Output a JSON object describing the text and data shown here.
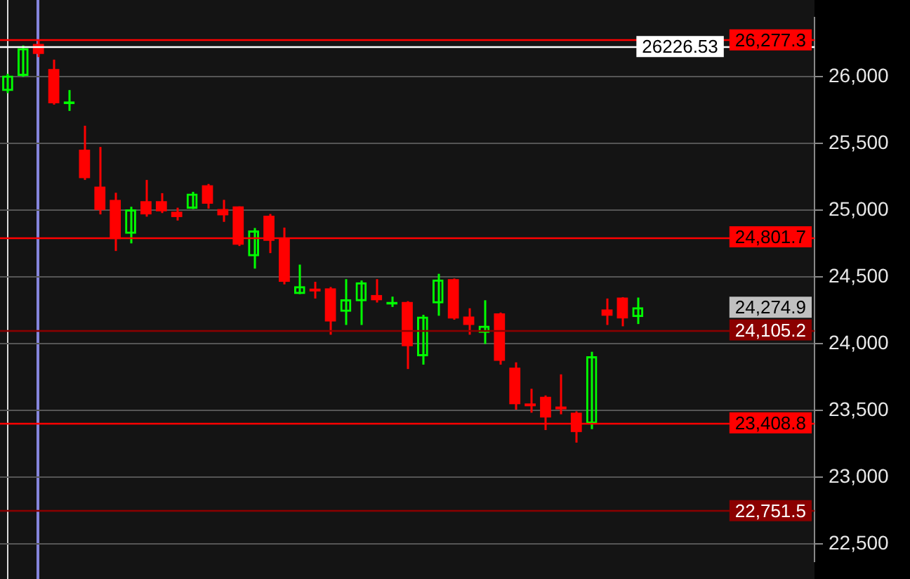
{
  "chart_data": {
    "type": "candlestick",
    "categories": [
      null,
      null,
      null,
      null,
      null,
      null,
      null,
      null,
      null,
      null,
      null,
      null,
      null,
      null,
      null,
      null,
      null,
      null,
      null,
      null,
      null,
      null,
      null,
      null,
      null,
      null,
      null,
      null,
      null,
      null,
      null,
      null,
      null,
      null,
      null,
      null,
      null,
      null,
      null,
      null,
      null,
      null,
      null,
      null,
      null,
      null,
      null,
      null,
      null,
      null,
      null,
      null,
      null
    ],
    "ohlc": [
      [
        25894,
        26023,
        25878,
        26010
      ],
      [
        26007,
        26235,
        26000,
        26215
      ],
      [
        26247,
        26277.3,
        26148,
        26171
      ],
      [
        26059,
        26129,
        25792,
        25802
      ],
      [
        25795,
        25901,
        25745,
        25805
      ],
      [
        25455,
        25634,
        25228,
        25241
      ],
      [
        25178,
        25475,
        24970,
        25003
      ],
      [
        25079,
        25132,
        24696,
        24785
      ],
      [
        24825,
        25027,
        24753,
        25007
      ],
      [
        25069,
        25228,
        24953,
        24970
      ],
      [
        25069,
        25129,
        24980,
        24993
      ],
      [
        24990,
        25020,
        24924,
        24950
      ],
      [
        25013,
        25139,
        25010,
        25126
      ],
      [
        25188,
        25198,
        25013,
        25050
      ],
      [
        25010,
        25079,
        24914,
        24963
      ],
      [
        25030,
        25030,
        24733,
        24743
      ],
      [
        24656,
        24868,
        24564,
        24849
      ],
      [
        24960,
        24973,
        24680,
        24772
      ],
      [
        24795,
        24871,
        24446,
        24465
      ],
      [
        24373,
        24594,
        24373,
        24433
      ],
      [
        24413,
        24465,
        24340,
        24393
      ],
      [
        24416,
        24426,
        24069,
        24168
      ],
      [
        24241,
        24485,
        24142,
        24334
      ],
      [
        24320,
        24475,
        24142,
        24462
      ],
      [
        24366,
        24485,
        24310,
        24327
      ],
      [
        24295,
        24354,
        24277,
        24305
      ],
      [
        24314,
        24320,
        23812,
        23983
      ],
      [
        23908,
        24218,
        23845,
        24205
      ],
      [
        24304,
        24525,
        24211,
        24482
      ],
      [
        24485,
        24490,
        24181,
        24191
      ],
      [
        24205,
        24267,
        24069,
        24142
      ],
      [
        24082,
        24327,
        24000,
        24136
      ],
      [
        24228,
        24235,
        23845,
        23874
      ],
      [
        23822,
        23862,
        23508,
        23548
      ],
      [
        23550,
        23664,
        23485,
        23533
      ],
      [
        23604,
        23614,
        23355,
        23449
      ],
      [
        23530,
        23772,
        23473,
        23510
      ],
      [
        23485,
        23495,
        23261,
        23340
      ],
      [
        23403,
        23941,
        23362,
        23908
      ],
      [
        24258,
        24340,
        24142,
        24211
      ],
      [
        24347,
        24350,
        24132,
        24191
      ],
      [
        24201,
        24347,
        24149,
        24274.9
      ],
      null,
      null,
      null,
      null,
      null,
      null,
      null,
      null,
      null,
      null,
      null
    ],
    "colors": [
      "#00ff00",
      "#00ff00",
      "#ff0000",
      "#ff0000",
      "#00ff00",
      "#ff0000",
      "#ff0000",
      "#ff0000",
      "#00ff00",
      "#ff0000",
      "#ff0000",
      "#ff0000",
      "#00ff00",
      "#ff0000",
      "#ff0000",
      "#ff0000",
      "#00ff00",
      "#ff0000",
      "#ff0000",
      "#00ff00",
      "#ff0000",
      "#ff0000",
      "#00ff00",
      "#00ff00",
      "#ff0000",
      "#00ff00",
      "#ff0000",
      "#00ff00",
      "#00ff00",
      "#ff0000",
      "#ff0000",
      "#00ff00",
      "#ff0000",
      "#ff0000",
      "#ff0000",
      "#ff0000",
      "#ff0000",
      "#ff0000",
      "#00ff00",
      "#ff0000",
      "#ff0000",
      "#00ff00",
      null,
      null,
      null,
      null,
      null,
      null,
      null,
      null,
      null,
      null,
      null
    ],
    "ylim": [
      22370,
      26445
    ],
    "yticks": [
      {
        "value": 22500,
        "label": "22,500"
      },
      {
        "value": 23000,
        "label": "23,000"
      },
      {
        "value": 23500,
        "label": "23,500"
      },
      {
        "value": 24000,
        "label": "24,000"
      },
      {
        "value": 24500,
        "label": "24,500"
      },
      {
        "value": 25000,
        "label": "25,000"
      },
      {
        "value": 25500,
        "label": "25,500"
      },
      {
        "value": 26000,
        "label": "26,000"
      }
    ],
    "grid": "y",
    "legend": false,
    "tick_labels": "y",
    "ref_lines": [
      {
        "axis": "y",
        "value": 26277.3,
        "label": "26,277.3",
        "color": "#ff0000"
      },
      {
        "axis": "y",
        "value": 26226.53,
        "label": "26226.53",
        "color": "#ffffff"
      },
      {
        "axis": "y",
        "value": 24801.7,
        "label": "24,801.7",
        "color": "#ff0000"
      },
      {
        "axis": "y",
        "value": 24105.2,
        "label": "24,105.2",
        "color": "#8b0000"
      },
      {
        "axis": "y",
        "value": 23408.8,
        "label": "23,408.8",
        "color": "#ff0000"
      },
      {
        "axis": "y",
        "value": 22751.5,
        "label": "22,751.5",
        "color": "#8b0000"
      }
    ],
    "annotations": [
      "24,274.9"
    ]
  }
}
